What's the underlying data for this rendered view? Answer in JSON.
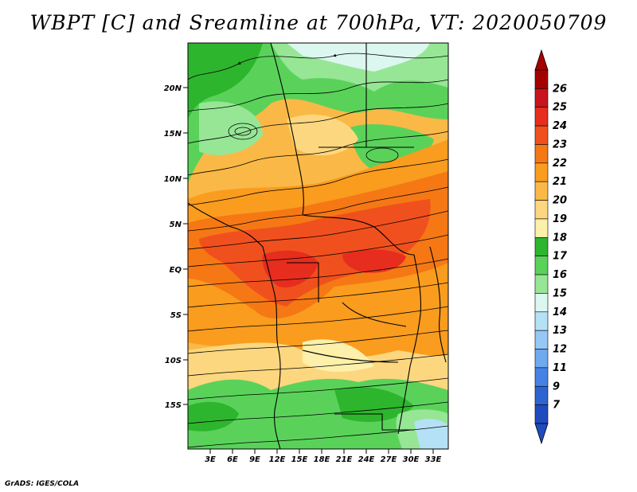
{
  "title": "WBPT [C] and Sreamline at 700hPa, VT: 2020050709",
  "credit": "GrADS: IGES/COLA",
  "map": {
    "lat_labels": [
      "20N",
      "15N",
      "10N",
      "5N",
      "EQ",
      "5S",
      "10S",
      "15S"
    ],
    "lon_labels": [
      "3E",
      "6E",
      "9E",
      "12E",
      "15E",
      "18E",
      "21E",
      "24E",
      "27E",
      "30E",
      "33E"
    ]
  },
  "colorbar": {
    "levels": [
      "26",
      "25",
      "24",
      "23",
      "22",
      "21",
      "20",
      "19",
      "18",
      "17",
      "16",
      "15",
      "14",
      "13",
      "12",
      "11",
      "9",
      "7"
    ],
    "colors": [
      "#a50000",
      "#c8141e",
      "#e62d1e",
      "#f0501e",
      "#f57814",
      "#fa9c1e",
      "#fab946",
      "#fcd77f",
      "#fcf0aa",
      "#2eb52e",
      "#5ad25a",
      "#96e696",
      "#dcf6f0",
      "#b4e1f5",
      "#96c8f5",
      "#6eaaf0",
      "#4682e6",
      "#2d64d2",
      "#1e4bbe"
    ]
  }
}
